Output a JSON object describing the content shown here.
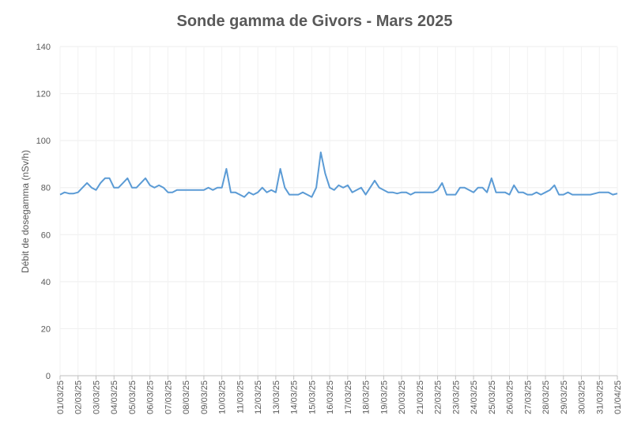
{
  "chart_data": {
    "type": "line",
    "title": "Sonde gamma de Givors - Mars 2025",
    "y_label": "Débit de dosegamma (nSv/h)",
    "categories": [
      "01/03/25",
      null,
      null,
      null,
      "02/03/25",
      null,
      null,
      null,
      "03/03/25",
      null,
      null,
      null,
      "04/03/25",
      null,
      null,
      null,
      "05/03/25",
      null,
      null,
      null,
      "06/03/25",
      null,
      null,
      null,
      "07/03/25",
      null,
      null,
      null,
      "08/03/25",
      null,
      null,
      null,
      "09/03/25",
      null,
      null,
      null,
      "10/03/25",
      null,
      null,
      null,
      "11/03/25",
      null,
      null,
      null,
      "12/03/25",
      null,
      null,
      null,
      "13/03/25",
      null,
      null,
      null,
      "14/03/25",
      null,
      null,
      null,
      "15/03/25",
      null,
      null,
      null,
      "16/03/25",
      null,
      null,
      null,
      "17/03/25",
      null,
      null,
      null,
      "18/03/25",
      null,
      null,
      null,
      "19/03/25",
      null,
      null,
      null,
      "20/03/25",
      null,
      null,
      null,
      "21/03/25",
      null,
      null,
      null,
      "22/03/25",
      null,
      null,
      null,
      "23/03/25",
      null,
      null,
      null,
      "24/03/25",
      null,
      null,
      null,
      "25/03/25",
      null,
      null,
      null,
      "26/03/25",
      null,
      null,
      null,
      "27/03/25",
      null,
      null,
      null,
      "28/03/25",
      null,
      null,
      null,
      "29/03/25",
      null,
      null,
      null,
      "30/03/25",
      null,
      null,
      null,
      "31/03/25",
      null,
      null,
      null,
      "01/04/25"
    ],
    "series": [
      {
        "name": "Débit de dosegamma",
        "color": "#5b9bd5",
        "values": [
          77,
          78,
          77.5,
          77.5,
          78,
          80,
          82,
          80,
          79,
          82,
          84,
          84,
          80,
          80,
          82,
          84,
          80,
          80,
          82,
          84,
          81,
          80,
          81,
          80,
          78,
          78,
          79,
          79,
          79,
          79,
          79,
          79,
          79,
          80,
          79,
          80,
          80,
          88,
          78,
          78,
          77,
          76,
          78,
          77,
          78,
          80,
          78,
          79,
          78,
          88,
          80,
          77,
          77,
          77,
          78,
          77,
          76,
          80,
          95,
          86,
          80,
          79,
          81,
          80,
          81,
          78,
          79,
          80,
          77,
          80,
          83,
          80,
          79,
          78,
          78,
          77.5,
          78,
          78,
          77,
          78,
          78,
          78,
          78,
          78,
          79,
          82,
          77,
          77,
          77,
          80,
          80,
          79,
          78,
          80,
          80,
          78,
          84,
          78,
          78,
          78,
          77,
          81,
          78,
          78,
          77,
          77,
          78,
          77,
          78,
          79,
          81,
          77,
          77,
          78,
          77,
          77,
          77,
          77,
          77,
          77.5,
          78,
          78,
          78,
          77,
          77.5
        ]
      }
    ],
    "ylim": [
      0,
      140
    ],
    "yticks": [
      0,
      20,
      40,
      60,
      80,
      100,
      120,
      140
    ],
    "grid": true
  }
}
